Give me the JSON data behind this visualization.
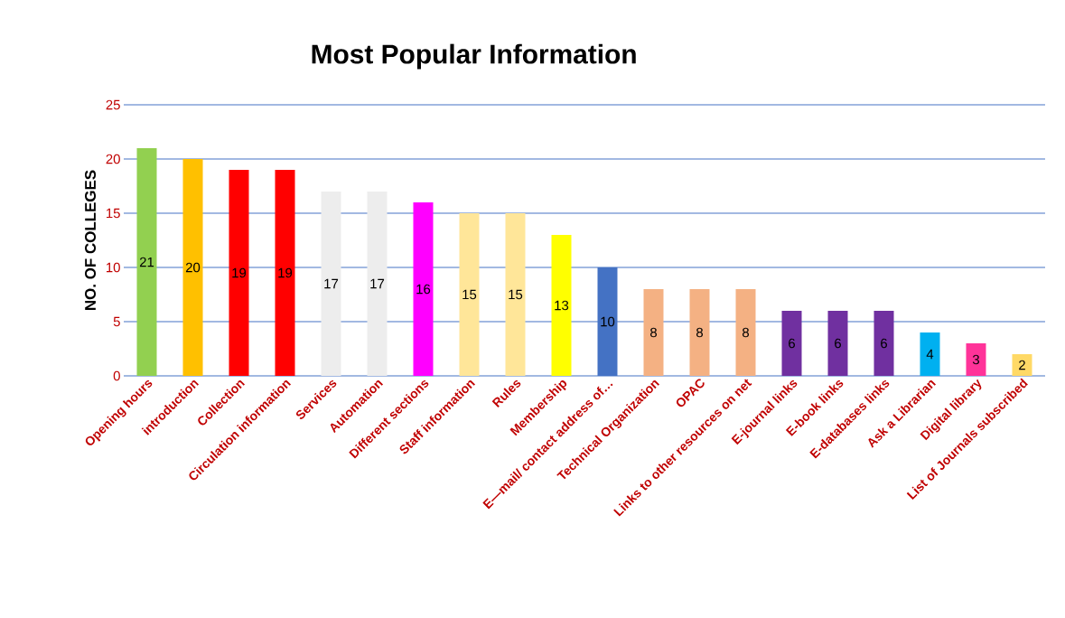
{
  "chart_data": {
    "type": "bar",
    "title": "Most Popular Information",
    "ylabel": "NO. OF COLLEGES",
    "categories": [
      "Opening hours",
      "introduction",
      "Collection",
      "Circulation information",
      "Services",
      "Automation",
      "Different sections",
      "Staff information",
      "Rules",
      "Membership",
      "E—mail/ contact address of…",
      "Technical Organization",
      "OPAC",
      "Links to other resources on net",
      "E-journal links",
      "E-book links",
      "E-databases links",
      "Ask a Librarian",
      "Digital library",
      "List of Journals subscribed"
    ],
    "values": [
      21,
      20,
      19,
      19,
      17,
      17,
      16,
      15,
      15,
      13,
      10,
      8,
      8,
      8,
      6,
      6,
      6,
      4,
      3,
      2
    ],
    "colors": [
      "#92d050",
      "#ffc000",
      "#ff0000",
      "#ff0000",
      "#ededed",
      "#ededed",
      "#ff00ff",
      "#ffe699",
      "#ffe699",
      "#ffff00",
      "#4472c4",
      "#f4b183",
      "#f4b183",
      "#f4b183",
      "#7030a0",
      "#7030a0",
      "#7030a0",
      "#00b0f0",
      "#ff3399",
      "#ffd966"
    ],
    "ylim": [
      0,
      25
    ],
    "yticks": [
      0,
      5,
      10,
      15,
      20,
      25
    ],
    "grid": "y",
    "data_labels": true
  }
}
